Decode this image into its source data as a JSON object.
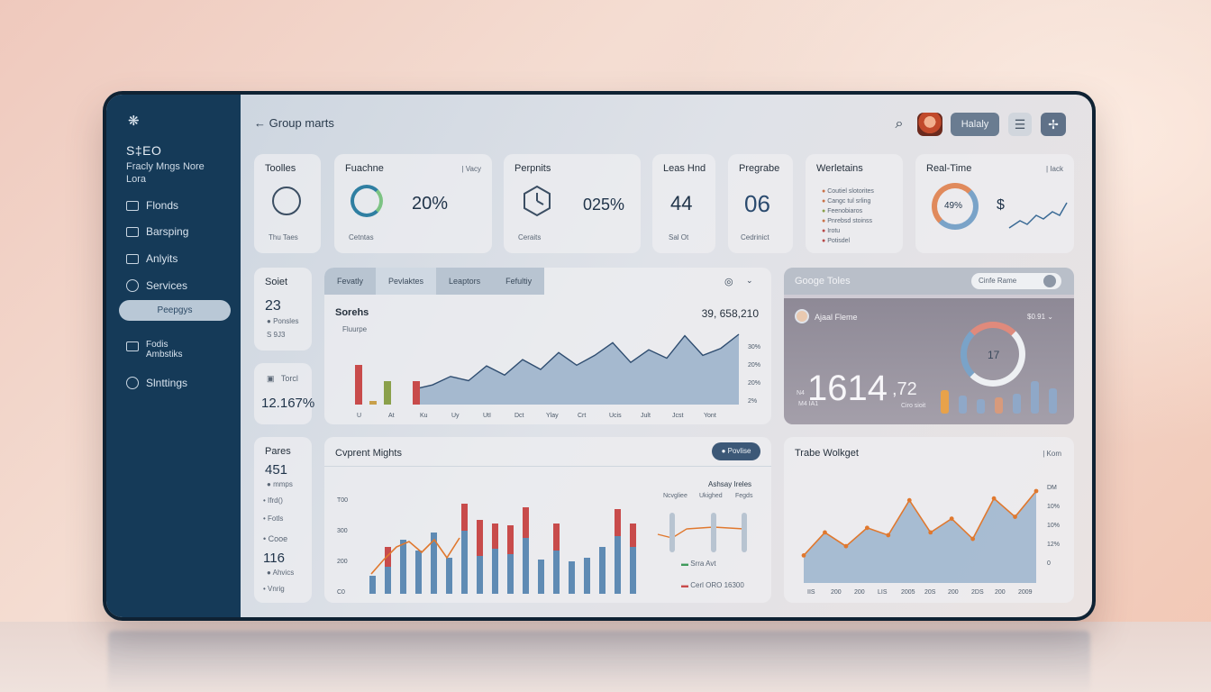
{
  "app": {
    "title": "Group marts"
  },
  "sidebar": {
    "brand": "S‡EO",
    "brand_sub": "Fracly Mngs Nore Lora",
    "items": [
      {
        "label": "Flonds",
        "icon": "folder-icon"
      },
      {
        "label": "Barsping",
        "icon": "chart-icon"
      },
      {
        "label": "Anlyits",
        "icon": "grid-icon"
      },
      {
        "label": "Services",
        "icon": "settings-icon"
      },
      {
        "label": "Peepgys",
        "icon": ""
      },
      {
        "label": "Fodis Ambstiks",
        "icon": "list-icon"
      },
      {
        "label": "Slnttings",
        "icon": "gear-icon"
      }
    ]
  },
  "header": {
    "button_label": "Halaly"
  },
  "kpis": [
    {
      "title": "Toolles",
      "footer": "Thu Taes"
    },
    {
      "title": "Fuachne",
      "value": "20%",
      "footer": "Cetntas",
      "corner": "Vacy"
    },
    {
      "title": "Perpnits",
      "value": "025%",
      "footer": "Ceraits"
    },
    {
      "title": "Leas Hnd",
      "value": "44",
      "footer": "Sal Ot"
    },
    {
      "title": "Pregrabe",
      "value": "06",
      "footer": "Cedrinict"
    },
    {
      "title": "Werletains",
      "items": [
        "Coutiel slotorites",
        "Cangc tul srling",
        "Feenobiaros",
        "Pnrebsd stoinss",
        "Irotu",
        "Potisdel"
      ]
    },
    {
      "title": "Real-Time",
      "ring": "49%",
      "symbol": "$",
      "corner": "Iack"
    }
  ],
  "side_small": [
    {
      "title": "Soiet",
      "value": "23",
      "sub1": "Ponsles",
      "sub2": "S 9J3"
    },
    {
      "title": "Torcl",
      "value": "12.167%"
    }
  ],
  "main_chart": {
    "tabs": [
      "Fevatly",
      "Pevlaktes",
      "Leaptors",
      "Fefultiy"
    ],
    "title": "Sorehs",
    "sub": "Fluurpe",
    "total": "39, 658,210",
    "y_ticks": [
      "30%",
      "20%",
      "20%",
      "2%"
    ],
    "x_ticks": [
      "U",
      "At",
      "Ku",
      "Uy",
      "UtI",
      "Dct",
      "Ylay",
      "Crt",
      "Ucis",
      "Jult",
      "Jcst",
      "Yont"
    ]
  },
  "goge": {
    "title": "Googe Toles",
    "search_placeholder": "Cinfe Rame",
    "name": "Ajaal Fleme",
    "amount": "$0.91",
    "big": "1614",
    "big_sub": ",72",
    "prefix": "N4",
    "suffix": "M4 IA1",
    "caption": "Ciro sioit",
    "ring_val": "17"
  },
  "pares": {
    "title": "Pares",
    "value1": "451",
    "sub1": "mmps",
    "row1": "Ifrd()",
    "row2": "Fotls",
    "row3": "Cooe",
    "value2": "116",
    "sub2": "Ahvics",
    "row4": "Vnrig"
  },
  "current": {
    "title": "Cvprent Mights",
    "button": "Povlise",
    "legend_title": "Ashsay Ireles",
    "legend_cols": [
      "Ncvgliee",
      "Ukighed",
      "Fegds"
    ],
    "legend1": "Srra Avt",
    "legend2": "Cerl ORO 16300",
    "y_ticks": [
      "T00",
      "300",
      "200",
      "C0"
    ]
  },
  "trave": {
    "title": "Trabe Wolkget",
    "corner": "Kom",
    "y_ticks": [
      "DM",
      "10%",
      "10%",
      "12%",
      "0"
    ],
    "x_ticks": [
      "IIS",
      "200",
      "200",
      "LIS",
      "2005",
      "20S",
      "200",
      "2DS",
      "200",
      "2009"
    ]
  },
  "chart_data": [
    {
      "type": "area",
      "title": "Sorehs",
      "y": [
        22,
        28,
        40,
        34,
        55,
        42,
        64,
        50,
        74,
        56,
        70,
        88,
        60,
        78,
        66,
        98,
        70,
        80,
        100
      ]
    },
    {
      "type": "bar",
      "title": "Cvprent Mights",
      "blue": [
        20,
        30,
        60,
        48,
        68,
        40,
        70,
        42,
        50,
        44,
        62,
        38,
        48,
        36,
        40,
        52,
        64,
        52
      ],
      "red": [
        0,
        22,
        0,
        0,
        0,
        0,
        30,
        40,
        28,
        32,
        34,
        0,
        30,
        0,
        0,
        0,
        30,
        26
      ],
      "line": [
        22,
        38,
        52,
        58,
        46,
        60,
        40,
        62
      ]
    },
    {
      "type": "line",
      "title": "Trabe Wolkget",
      "line": [
        30,
        55,
        40,
        60,
        52,
        90,
        55,
        70,
        48,
        92,
        72,
        100
      ]
    }
  ]
}
